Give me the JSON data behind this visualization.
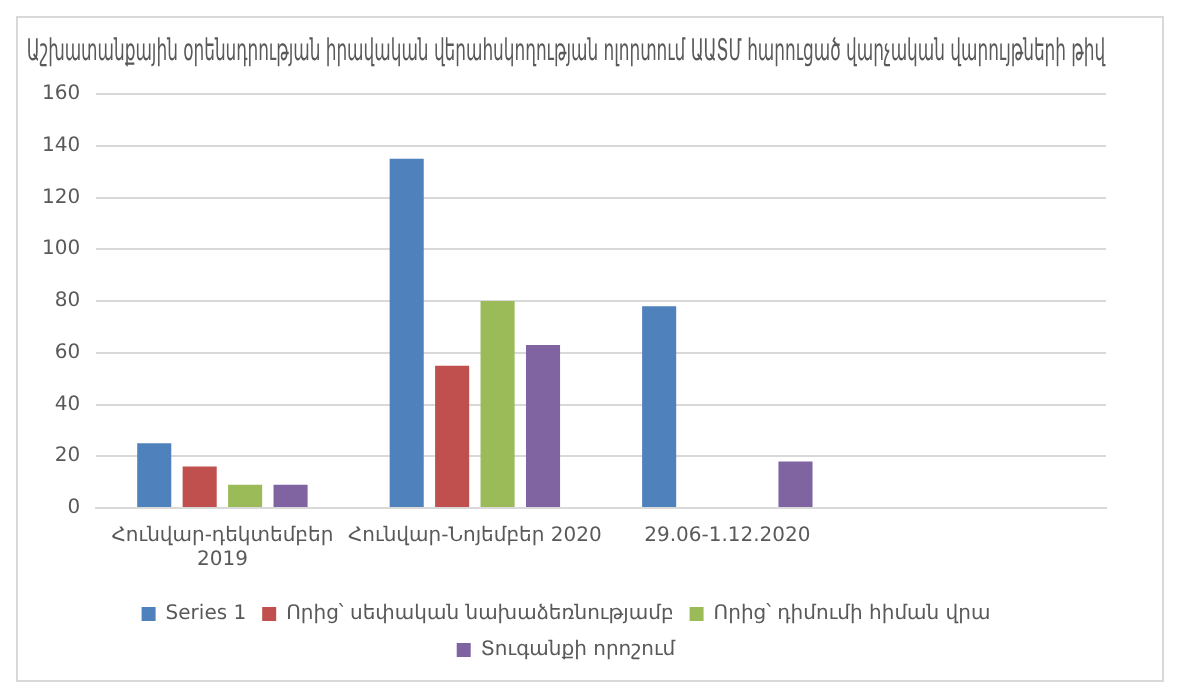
{
  "chart_data": {
    "type": "bar",
    "title": "Աշխատանքային օրենսդրության իրավական վերահսկողության ոլորտում ԱԱՏՄ հարուցած վարչական վարույթների թիվ",
    "categories": [
      "Հունվար-դեկտեմբեր 2019",
      "Հունվար-Նոյեմբեր 2020",
      "29.06-1.12.2020",
      null
    ],
    "series": [
      {
        "name": "Series 1",
        "color": "#4f81bd",
        "values": [
          25,
          135,
          78,
          null
        ]
      },
      {
        "name": "Որից՝ սեփական նախաձեռնությամբ",
        "color": "#c0504d",
        "values": [
          16,
          55,
          null,
          null
        ]
      },
      {
        "name": "Որից՝ դիմումի հիման վրա",
        "color": "#9bbb59",
        "values": [
          9,
          80,
          null,
          null
        ]
      },
      {
        "name": "Տուգանքի որոշում",
        "color": "#8064a2",
        "values": [
          9,
          63,
          18,
          null
        ]
      }
    ],
    "ylim": [
      0,
      160
    ],
    "yticks": [
      0,
      20,
      40,
      60,
      80,
      100,
      120,
      140,
      160
    ],
    "grid": "y",
    "legend": "bottom"
  }
}
